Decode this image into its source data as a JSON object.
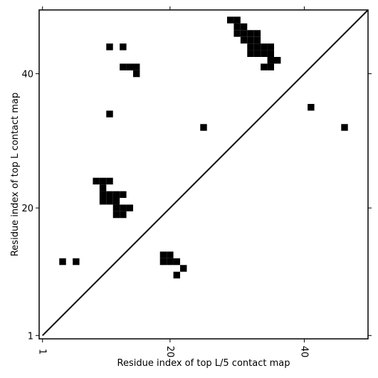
{
  "chart_data": {
    "type": "contact-map",
    "x_label": "Residue index of top L/5 contact map",
    "y_label": "Residue index of top L contact map",
    "xlim": [
      0.5,
      49.5
    ],
    "ylim": [
      0.5,
      49.5
    ],
    "xticks": [
      1,
      20,
      40
    ],
    "yticks": [
      1,
      20,
      40
    ],
    "color": "#000000",
    "x": [
      4,
      6,
      11,
      13,
      13,
      14,
      15,
      15,
      11,
      25,
      9,
      10,
      11,
      10,
      10,
      11,
      12,
      13,
      10,
      11,
      12,
      12,
      13,
      14,
      12,
      13,
      29,
      30,
      30,
      31,
      30,
      31,
      32,
      33,
      31,
      32,
      33,
      32,
      33,
      34,
      35,
      32,
      33,
      34,
      35,
      35,
      36,
      34,
      35,
      41,
      46,
      19,
      20,
      19,
      20,
      21,
      22,
      21
    ],
    "y": [
      12,
      12,
      44,
      44,
      41,
      41,
      41,
      40,
      34,
      32,
      24,
      24,
      24,
      23,
      22,
      22,
      22,
      22,
      21,
      21,
      21,
      20,
      20,
      20,
      19,
      19,
      48,
      48,
      47,
      47,
      46,
      46,
      46,
      46,
      45,
      45,
      45,
      44,
      44,
      44,
      44,
      43,
      43,
      43,
      43,
      42,
      42,
      41,
      41,
      35,
      32,
      13,
      13,
      12,
      12,
      12,
      11,
      10
    ]
  }
}
